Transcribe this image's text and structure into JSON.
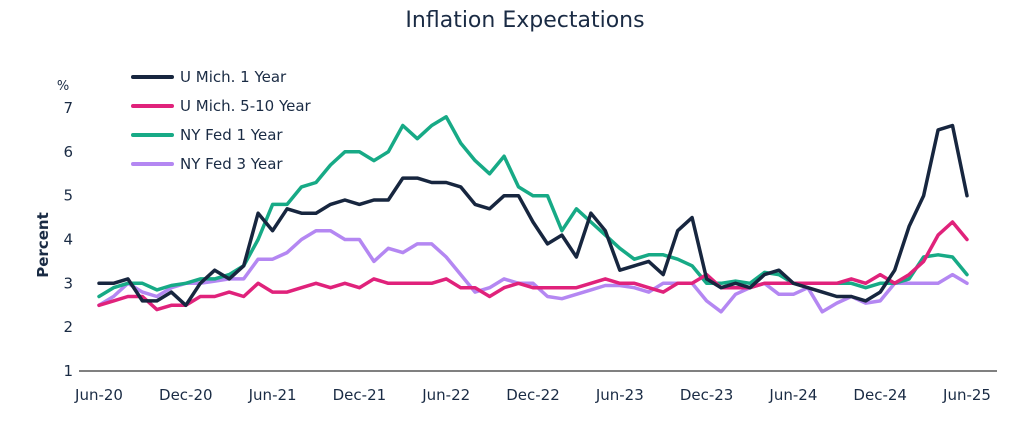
{
  "chart_data": {
    "type": "line",
    "title": "Inflation Expectations",
    "ylabel": "Percent",
    "yunit": "%",
    "xlabel": "",
    "ylim": [
      1,
      7
    ],
    "yticks": [
      1,
      2,
      3,
      4,
      5,
      6,
      7
    ],
    "grid": false,
    "legend": "top-left",
    "x": [
      "Jun-20",
      "Jul-20",
      "Aug-20",
      "Sep-20",
      "Oct-20",
      "Nov-20",
      "Dec-20",
      "Jan-21",
      "Feb-21",
      "Mar-21",
      "Apr-21",
      "May-21",
      "Jun-21",
      "Jul-21",
      "Aug-21",
      "Sep-21",
      "Oct-21",
      "Nov-21",
      "Dec-21",
      "Jan-22",
      "Feb-22",
      "Mar-22",
      "Apr-22",
      "May-22",
      "Jun-22",
      "Jul-22",
      "Aug-22",
      "Sep-22",
      "Oct-22",
      "Nov-22",
      "Dec-22",
      "Jan-23",
      "Feb-23",
      "Mar-23",
      "Apr-23",
      "May-23",
      "Jun-23",
      "Jul-23",
      "Aug-23",
      "Sep-23",
      "Oct-23",
      "Nov-23",
      "Dec-23",
      "Jan-24",
      "Feb-24",
      "Mar-24",
      "Apr-24",
      "May-24",
      "Jun-24",
      "Jul-24",
      "Aug-24",
      "Sep-24",
      "Oct-24",
      "Nov-24",
      "Dec-24",
      "Jan-25",
      "Feb-25",
      "Mar-25",
      "Apr-25",
      "May-25",
      "Jun-25"
    ],
    "xtick_labels": [
      "Jun-20",
      "Dec-20",
      "Jun-21",
      "Dec-21",
      "Jun-22",
      "Dec-22",
      "Jun-23",
      "Dec-23",
      "Jun-24",
      "Dec-24",
      "Jun-25"
    ],
    "series": [
      {
        "name": "U Mich. 1 Year",
        "color": "#17263f",
        "values": [
          3.0,
          3.0,
          3.1,
          2.6,
          2.6,
          2.8,
          2.5,
          3.0,
          3.3,
          3.1,
          3.4,
          4.6,
          4.2,
          4.7,
          4.6,
          4.6,
          4.8,
          4.9,
          4.8,
          4.9,
          4.9,
          5.4,
          5.4,
          5.3,
          5.3,
          5.2,
          4.8,
          4.7,
          5.0,
          5.0,
          4.4,
          3.9,
          4.1,
          3.6,
          4.6,
          4.2,
          3.3,
          3.4,
          3.5,
          3.2,
          4.2,
          4.5,
          3.1,
          2.9,
          3.0,
          2.9,
          3.2,
          3.3,
          3.0,
          2.9,
          2.8,
          2.7,
          2.7,
          2.6,
          2.8,
          3.3,
          4.3,
          5.0,
          6.5,
          6.6,
          5.0
        ]
      },
      {
        "name": "U Mich. 5-10 Year",
        "color": "#e0227b",
        "values": [
          2.5,
          2.6,
          2.7,
          2.7,
          2.4,
          2.5,
          2.5,
          2.7,
          2.7,
          2.8,
          2.7,
          3.0,
          2.8,
          2.8,
          2.9,
          3.0,
          2.9,
          3.0,
          2.9,
          3.1,
          3.0,
          3.0,
          3.0,
          3.0,
          3.1,
          2.9,
          2.9,
          2.7,
          2.9,
          3.0,
          2.9,
          2.9,
          2.9,
          2.9,
          3.0,
          3.1,
          3.0,
          3.0,
          2.9,
          2.8,
          3.0,
          3.0,
          3.2,
          2.9,
          2.9,
          2.9,
          3.0,
          3.0,
          3.0,
          3.0,
          3.0,
          3.0,
          3.1,
          3.0,
          3.2,
          3.0,
          3.2,
          3.5,
          4.1,
          4.4,
          4.0
        ]
      },
      {
        "name": "NY Fed 1 Year",
        "color": "#17aa86",
        "values": [
          2.7,
          2.9,
          3.0,
          3.0,
          2.85,
          2.95,
          3.0,
          3.1,
          3.1,
          3.2,
          3.4,
          4.0,
          4.8,
          4.8,
          5.2,
          5.3,
          5.7,
          6.0,
          6.0,
          5.8,
          6.0,
          6.6,
          6.3,
          6.6,
          6.8,
          6.2,
          5.8,
          5.5,
          5.9,
          5.2,
          5.0,
          5.0,
          4.2,
          4.7,
          4.4,
          4.1,
          3.8,
          3.55,
          3.65,
          3.65,
          3.55,
          3.4,
          3.0,
          3.0,
          3.05,
          3.0,
          3.25,
          3.2,
          3.0,
          3.0,
          3.0,
          3.0,
          3.0,
          2.9,
          3.0,
          3.0,
          3.1,
          3.6,
          3.65,
          3.6,
          3.2
        ]
      },
      {
        "name": "NY Fed 3 Year",
        "color": "#b487f2",
        "values": [
          2.5,
          2.7,
          3.0,
          2.8,
          2.7,
          2.9,
          3.0,
          3.0,
          3.05,
          3.1,
          3.1,
          3.55,
          3.55,
          3.7,
          4.0,
          4.2,
          4.2,
          4.0,
          4.0,
          3.5,
          3.8,
          3.7,
          3.9,
          3.9,
          3.6,
          3.2,
          2.8,
          2.9,
          3.1,
          3.0,
          3.0,
          2.7,
          2.65,
          2.75,
          2.85,
          2.95,
          2.95,
          2.9,
          2.8,
          3.0,
          3.0,
          3.0,
          2.6,
          2.35,
          2.75,
          2.9,
          3.0,
          2.75,
          2.75,
          2.9,
          2.35,
          2.55,
          2.7,
          2.55,
          2.6,
          3.0,
          3.0,
          3.0,
          3.0,
          3.2,
          3.0
        ]
      }
    ]
  }
}
